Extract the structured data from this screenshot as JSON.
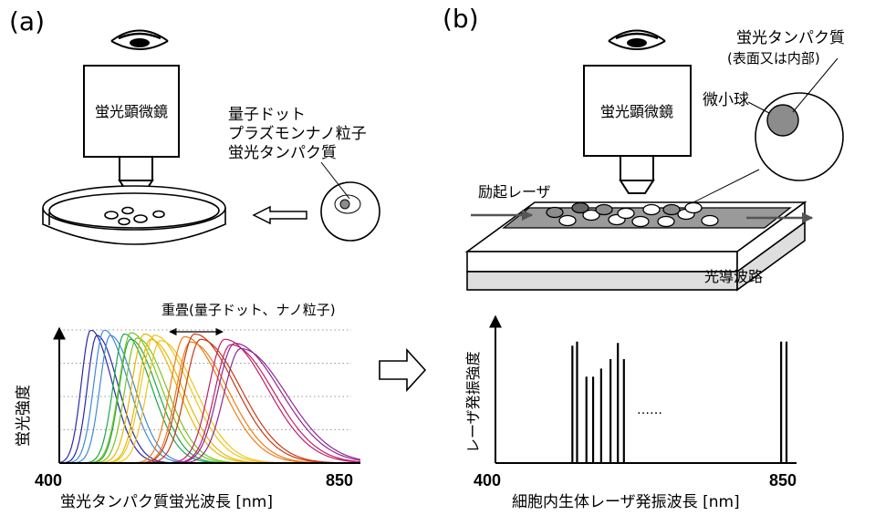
{
  "panel_a": {
    "label": "(a)",
    "microscope_label": "蛍光顕微鏡",
    "particle_labels": [
      "量子ドット",
      "プラズモンナノ粒子",
      "蛍光タンパク質"
    ],
    "overlap_label": "重畳(量子ドット、ナノ粒子)",
    "ylabel": "蛍光強度",
    "xlabel": "蛍光タンパク質蛍光波長 [nm]",
    "x_min_label": "400",
    "x_max_label": "850"
  },
  "panel_b": {
    "label": "(b)",
    "microscope_label": "蛍光顕微鏡",
    "protein_label_1": "蛍光タンパク質",
    "protein_label_2": "(表面又は内部)",
    "microsphere_label": "微小球",
    "laser_label": "励起レーザ",
    "waveguide_label": "光導波路",
    "ylabel": "レーザ発振強度",
    "xlabel": "細胞内生体レーザ発振波長 [nm]",
    "x_min_label": "400",
    "x_max_label": "850",
    "ellipsis": "……"
  },
  "colors": {
    "spectra": [
      "#2a2aa6",
      "#3f8ad8",
      "#1aa84a",
      "#7ac41e",
      "#e6b800",
      "#f0c419",
      "#ee7d1a",
      "#c83a14",
      "#c21f6a",
      "#8e2896"
    ],
    "chamber_fill": "#9a9a9a",
    "waveguide_fill": "#dedede"
  },
  "chart_data": [
    {
      "type": "line",
      "xlabel": "蛍光タンパク質蛍光波長 [nm]",
      "ylabel": "蛍光強度",
      "xlim": [
        400,
        850
      ],
      "grid": true,
      "series": [
        {
          "peak": 450,
          "values": [
            1.0
          ]
        },
        {
          "peak": 470,
          "values": [
            1.0
          ]
        },
        {
          "peak": 500,
          "values": [
            0.97
          ]
        },
        {
          "peak": 510,
          "values": [
            0.98
          ]
        },
        {
          "peak": 530,
          "values": [
            0.97
          ]
        },
        {
          "peak": 545,
          "values": [
            0.96
          ]
        },
        {
          "peak": 590,
          "values": [
            0.95
          ]
        },
        {
          "peak": 605,
          "values": [
            0.97
          ]
        },
        {
          "peak": 650,
          "values": [
            0.93
          ]
        },
        {
          "peak": 665,
          "values": [
            0.9
          ]
        }
      ]
    },
    {
      "type": "bar",
      "xlabel": "細胞内生体レーザ発振波長 [nm]",
      "ylabel": "レーザ発振強度",
      "xlim": [
        400,
        850
      ],
      "x": [
        515,
        522,
        536,
        546,
        558,
        572,
        583,
        592,
        827,
        835
      ],
      "values": [
        0.87,
        0.9,
        0.64,
        0.64,
        0.7,
        0.77,
        0.89,
        0.77,
        0.9,
        0.9
      ]
    }
  ]
}
